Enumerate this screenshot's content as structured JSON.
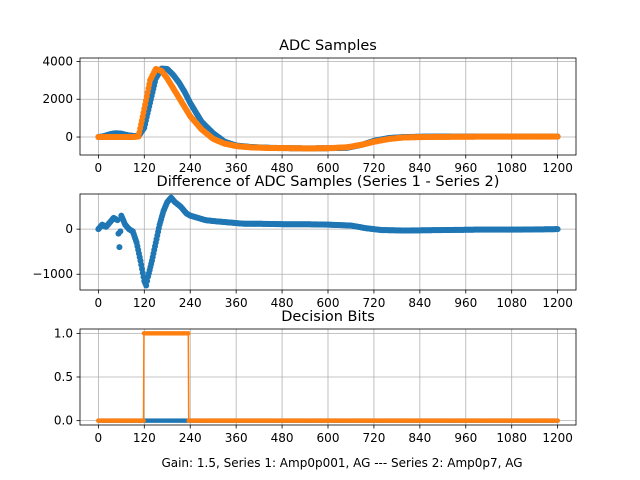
{
  "colors": {
    "series1": "#1f77b4",
    "series2": "#ff7f0e",
    "grid": "#b0b0b0",
    "axis": "#000000"
  },
  "footer": "Gain: 1.5, Series 1: Amp0p001, AG --- Series 2: Amp0p7, AG",
  "chart_data": [
    {
      "type": "scatter",
      "title": "ADC Samples",
      "xlim": [
        -48,
        1248
      ],
      "ylim": [
        -950,
        4180
      ],
      "x_ticks": [
        0,
        120,
        240,
        360,
        480,
        600,
        720,
        840,
        960,
        1080,
        1200
      ],
      "y_ticks": [
        0,
        2000,
        4000
      ],
      "y_tick_labels": [
        "0",
        "2000",
        "4000"
      ],
      "grid": true,
      "series": [
        {
          "color": "#1f77b4",
          "marker": "dot",
          "x": [
            0,
            15,
            30,
            45,
            60,
            75,
            90,
            105,
            120,
            135,
            150,
            165,
            180,
            195,
            210,
            225,
            240,
            270,
            300,
            330,
            360,
            400,
            450,
            500,
            550,
            600,
            650,
            690,
            720,
            760,
            800,
            850,
            900,
            1000,
            1100,
            1200
          ],
          "y": [
            0,
            50,
            150,
            200,
            180,
            100,
            60,
            40,
            500,
            1800,
            3100,
            3620,
            3600,
            3300,
            2900,
            2400,
            1800,
            800,
            200,
            -250,
            -450,
            -530,
            -570,
            -590,
            -600,
            -590,
            -570,
            -400,
            -200,
            -50,
            0,
            20,
            30,
            30,
            30,
            30
          ]
        },
        {
          "color": "#ff7f0e",
          "marker": "dot",
          "x": [
            0,
            15,
            30,
            45,
            60,
            75,
            90,
            105,
            120,
            135,
            150,
            165,
            180,
            195,
            210,
            225,
            240,
            270,
            300,
            330,
            360,
            400,
            450,
            500,
            550,
            600,
            650,
            690,
            720,
            760,
            800,
            850,
            900,
            1000,
            1100,
            1200
          ],
          "y": [
            0,
            0,
            0,
            0,
            0,
            0,
            0,
            30,
            1500,
            3000,
            3600,
            3500,
            3100,
            2600,
            2100,
            1600,
            1100,
            400,
            -100,
            -350,
            -480,
            -550,
            -580,
            -590,
            -600,
            -590,
            -540,
            -400,
            -250,
            -100,
            -20,
            0,
            10,
            20,
            20,
            20
          ]
        }
      ]
    },
    {
      "type": "scatter",
      "title": "Difference of ADC Samples (Series 1 - Series 2)",
      "xlim": [
        -48,
        1248
      ],
      "ylim": [
        -1350,
        780
      ],
      "x_ticks": [
        0,
        120,
        240,
        360,
        480,
        600,
        720,
        840,
        960,
        1080,
        1200
      ],
      "y_ticks": [
        -1000,
        0
      ],
      "y_tick_labels": [
        "−1000",
        "0"
      ],
      "grid": true,
      "series": [
        {
          "color": "#1f77b4",
          "marker": "dot",
          "x": [
            0,
            10,
            20,
            30,
            40,
            50,
            55,
            60,
            70,
            80,
            90,
            100,
            110,
            120,
            125,
            130,
            140,
            150,
            160,
            170,
            180,
            190,
            200,
            215,
            230,
            240,
            260,
            280,
            300,
            340,
            380,
            420,
            480,
            540,
            600,
            660,
            700,
            740,
            800,
            900,
            1000,
            1100,
            1200
          ],
          "y": [
            0,
            100,
            50,
            150,
            250,
            200,
            -400,
            300,
            100,
            0,
            -50,
            -300,
            -700,
            -1150,
            -1250,
            -1050,
            -700,
            -300,
            100,
            400,
            600,
            700,
            600,
            500,
            350,
            300,
            250,
            200,
            180,
            150,
            120,
            120,
            110,
            110,
            100,
            80,
            20,
            -20,
            -30,
            -20,
            -10,
            -10,
            0
          ]
        }
      ]
    },
    {
      "type": "line",
      "title": "Decision Bits",
      "xlabel": "Gain: 1.5, Series 1: Amp0p001, AG --- Series 2: Amp0p7, AG",
      "xlim": [
        -48,
        1248
      ],
      "ylim": [
        -0.05,
        1.05
      ],
      "x_ticks": [
        0,
        120,
        240,
        360,
        480,
        600,
        720,
        840,
        960,
        1080,
        1200
      ],
      "y_ticks": [
        0.0,
        0.5,
        1.0
      ],
      "y_tick_labels": [
        "0.0",
        "0.5",
        "1.0"
      ],
      "grid": true,
      "series": [
        {
          "color": "#1f77b4",
          "marker": "dot",
          "x": [
            0,
            1200
          ],
          "y": [
            0,
            0
          ]
        },
        {
          "color": "#ff7f0e",
          "marker": "dot",
          "x": [
            0,
            118,
            119,
            235,
            236,
            1200
          ],
          "y": [
            0,
            0,
            1,
            1,
            0,
            0
          ]
        }
      ]
    }
  ]
}
